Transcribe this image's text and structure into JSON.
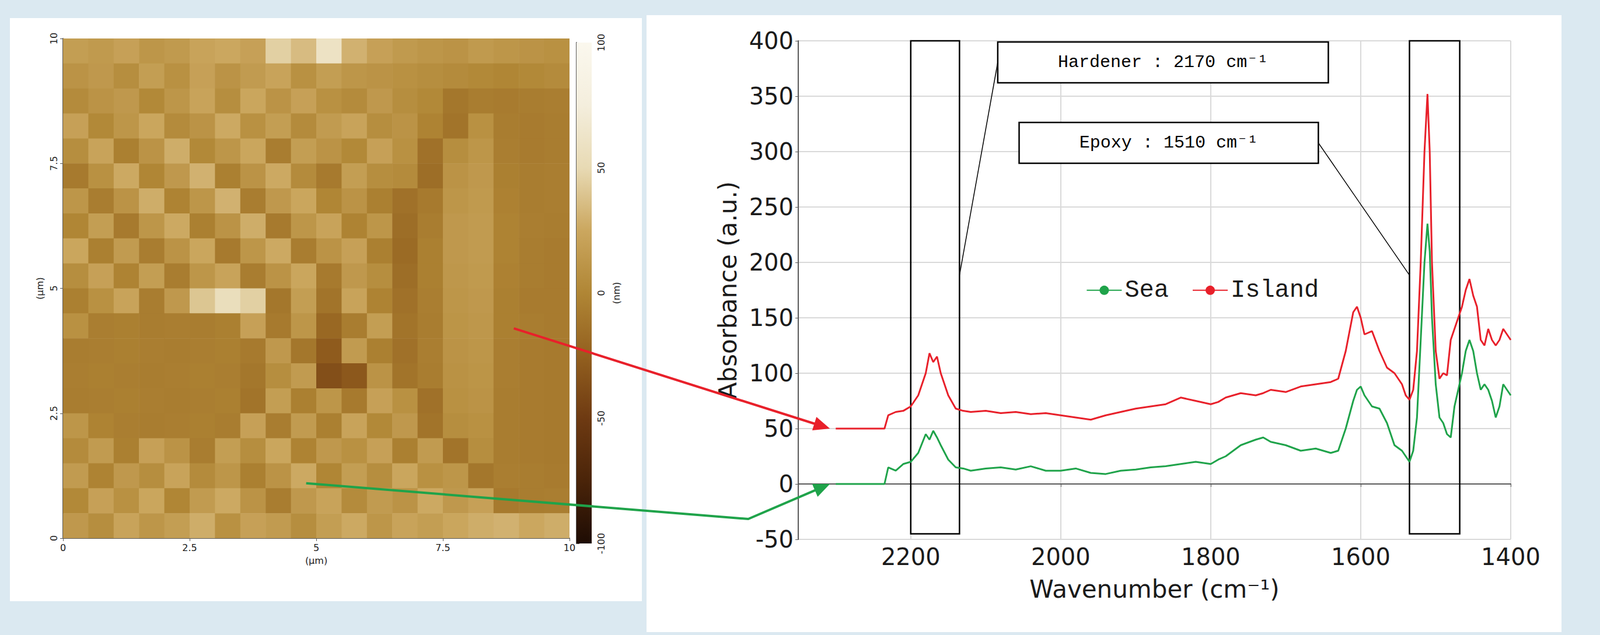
{
  "chart_data": [
    {
      "type": "heatmap",
      "xlabel": "(µm)",
      "ylabel": "(µm)",
      "xlim": [
        0,
        10
      ],
      "ylim": [
        0,
        10
      ],
      "xticks": [
        0,
        2.5,
        5,
        7.5,
        10
      ],
      "yticks": [
        0,
        2.5,
        5,
        7.5,
        10
      ],
      "grid": false,
      "x": [
        0.25,
        0.75,
        1.25,
        1.75,
        2.25,
        2.75,
        3.25,
        3.75,
        4.25,
        4.75,
        5.25,
        5.75,
        6.25,
        6.75,
        7.25,
        7.75,
        8.25,
        8.75,
        9.25,
        9.75
      ],
      "y": [
        9.75,
        9.25,
        8.75,
        8.25,
        7.75,
        7.25,
        6.75,
        6.25,
        5.75,
        5.25,
        4.75,
        4.25,
        3.75,
        3.25,
        2.75,
        2.25,
        1.75,
        1.25,
        0.75,
        0.25
      ],
      "values": [
        [
          18,
          15,
          20,
          12,
          15,
          22,
          25,
          20,
          45,
          35,
          60,
          30,
          20,
          15,
          12,
          10,
          15,
          12,
          10,
          8
        ],
        [
          10,
          14,
          6,
          18,
          8,
          20,
          10,
          16,
          22,
          8,
          18,
          12,
          10,
          8,
          6,
          4,
          2,
          0,
          2,
          4
        ],
        [
          4,
          10,
          14,
          2,
          12,
          22,
          6,
          24,
          10,
          20,
          8,
          4,
          14,
          6,
          2,
          -10,
          -6,
          -7,
          -6,
          -5
        ],
        [
          20,
          2,
          12,
          24,
          4,
          10,
          26,
          8,
          18,
          4,
          16,
          22,
          6,
          10,
          -2,
          -12,
          8,
          -6,
          -7,
          -6
        ],
        [
          6,
          22,
          -4,
          10,
          28,
          2,
          12,
          24,
          -6,
          18,
          10,
          2,
          20,
          8,
          -14,
          6,
          12,
          -5,
          -7,
          -6
        ],
        [
          -8,
          8,
          26,
          0,
          14,
          30,
          -4,
          10,
          26,
          4,
          -8,
          18,
          6,
          4,
          -16,
          10,
          14,
          -4,
          -6,
          -5
        ],
        [
          12,
          -6,
          10,
          28,
          -2,
          12,
          30,
          -6,
          14,
          24,
          0,
          10,
          -4,
          -14,
          -8,
          12,
          15,
          -3,
          -6,
          -5
        ],
        [
          0,
          18,
          -8,
          12,
          26,
          -4,
          10,
          28,
          -8,
          12,
          22,
          -2,
          12,
          -16,
          -6,
          14,
          16,
          -2,
          -5,
          -6
        ],
        [
          24,
          -4,
          16,
          -6,
          10,
          24,
          -8,
          12,
          26,
          -6,
          10,
          20,
          -4,
          -18,
          -4,
          14,
          16,
          -2,
          -6,
          -7
        ],
        [
          6,
          20,
          -2,
          18,
          -6,
          12,
          22,
          -6,
          10,
          24,
          -8,
          14,
          6,
          -16,
          -4,
          13,
          15,
          -3,
          -6,
          -7
        ],
        [
          -4,
          8,
          22,
          -6,
          14,
          40,
          55,
          45,
          -10,
          18,
          -12,
          22,
          -2,
          -14,
          -5,
          12,
          14,
          -4,
          -7,
          -7
        ],
        [
          8,
          -5,
          -4,
          -6,
          -5,
          -6,
          -4,
          20,
          -8,
          12,
          -20,
          -6,
          18,
          -12,
          -6,
          11,
          13,
          -4,
          -6,
          -7
        ],
        [
          -6,
          -5,
          -4,
          -5,
          -6,
          -5,
          -4,
          -8,
          14,
          -10,
          -28,
          16,
          -4,
          -14,
          -5,
          10,
          12,
          -5,
          -7,
          -8
        ],
        [
          -5,
          -4,
          -5,
          -6,
          -5,
          -4,
          -5,
          -10,
          6,
          16,
          -36,
          -30,
          10,
          -12,
          -6,
          9,
          11,
          -5,
          -7,
          -8
        ],
        [
          -6,
          -5,
          -4,
          -5,
          -6,
          -5,
          -4,
          -12,
          18,
          -4,
          12,
          -8,
          20,
          8,
          -14,
          8,
          10,
          -6,
          -7,
          -8
        ],
        [
          12,
          -2,
          -5,
          -6,
          -5,
          -4,
          -6,
          20,
          -6,
          16,
          -4,
          22,
          2,
          14,
          -12,
          6,
          8,
          -6,
          -7,
          -8
        ],
        [
          4,
          16,
          -4,
          20,
          10,
          -6,
          18,
          6,
          24,
          -2,
          14,
          8,
          20,
          -4,
          16,
          -12,
          6,
          -6,
          -7,
          -8
        ],
        [
          16,
          -2,
          14,
          6,
          22,
          4,
          12,
          -4,
          10,
          26,
          0,
          18,
          6,
          24,
          8,
          12,
          -10,
          -5,
          -6,
          -7
        ],
        [
          2,
          20,
          8,
          24,
          0,
          16,
          26,
          10,
          -6,
          14,
          22,
          4,
          16,
          10,
          26,
          14,
          20,
          -8,
          -6,
          -5
        ],
        [
          14,
          6,
          22,
          12,
          18,
          28,
          8,
          20,
          16,
          6,
          18,
          26,
          12,
          22,
          18,
          24,
          28,
          30,
          25,
          28
        ]
      ],
      "colorbar": {
        "label": "(nm)",
        "range": [
          -100,
          100
        ],
        "ticks": [
          -100,
          -50,
          0,
          50,
          100
        ]
      }
    },
    {
      "type": "line",
      "xlabel": "Wavenumber (cm⁻¹)",
      "ylabel": "Absorbance (a.u.)",
      "xlim": [
        2350,
        1400
      ],
      "ylim": [
        -50,
        400
      ],
      "xticks": [
        2200,
        2000,
        1800,
        1600,
        1400
      ],
      "yticks": [
        -50,
        0,
        50,
        100,
        150,
        200,
        250,
        300,
        350,
        400
      ],
      "grid": true,
      "legend": "center",
      "x": [
        2300,
        2235,
        2230,
        2220,
        2210,
        2200,
        2190,
        2180,
        2175,
        2170,
        2165,
        2160,
        2150,
        2140,
        2130,
        2120,
        2100,
        2080,
        2060,
        2040,
        2020,
        2000,
        1980,
        1960,
        1940,
        1920,
        1900,
        1880,
        1860,
        1840,
        1820,
        1800,
        1790,
        1780,
        1760,
        1740,
        1730,
        1720,
        1700,
        1680,
        1660,
        1640,
        1630,
        1620,
        1610,
        1605,
        1600,
        1595,
        1585,
        1575,
        1565,
        1555,
        1545,
        1540,
        1535,
        1530,
        1525,
        1520,
        1515,
        1511,
        1508,
        1505,
        1500,
        1495,
        1490,
        1485,
        1480,
        1475,
        1465,
        1460,
        1455,
        1450,
        1445,
        1440,
        1435,
        1430,
        1425,
        1420,
        1415,
        1410,
        1405,
        1400
      ],
      "series": [
        {
          "name": "Sea",
          "color": "#1fa34a",
          "values": [
            0,
            0,
            15,
            12,
            18,
            20,
            28,
            45,
            40,
            48,
            42,
            35,
            22,
            15,
            14,
            12,
            14,
            15,
            13,
            16,
            12,
            12,
            14,
            10,
            9,
            12,
            13,
            15,
            16,
            18,
            20,
            18,
            22,
            25,
            35,
            40,
            42,
            38,
            35,
            30,
            32,
            28,
            30,
            50,
            75,
            85,
            88,
            80,
            70,
            68,
            55,
            35,
            30,
            25,
            20,
            30,
            60,
            130,
            200,
            235,
            210,
            150,
            90,
            60,
            55,
            45,
            42,
            70,
            100,
            120,
            130,
            120,
            100,
            85,
            90,
            85,
            75,
            60,
            70,
            90,
            85,
            80
          ]
        },
        {
          "name": "Island",
          "color": "#e8202a",
          "values": [
            50,
            50,
            62,
            65,
            66,
            70,
            80,
            100,
            118,
            110,
            115,
            100,
            80,
            68,
            66,
            65,
            66,
            64,
            65,
            63,
            64,
            62,
            60,
            58,
            62,
            65,
            68,
            70,
            72,
            78,
            75,
            72,
            74,
            78,
            82,
            80,
            82,
            85,
            83,
            88,
            90,
            92,
            95,
            120,
            155,
            160,
            150,
            135,
            138,
            120,
            105,
            100,
            90,
            80,
            76,
            85,
            120,
            200,
            300,
            352,
            300,
            200,
            120,
            95,
            100,
            98,
            130,
            140,
            160,
            175,
            185,
            170,
            160,
            130,
            125,
            140,
            130,
            125,
            130,
            140,
            135,
            130
          ]
        }
      ],
      "annotations": [
        {
          "text": "Hardener : 2170 cm⁻¹",
          "box": {
            "x": [
              2200,
              2135
            ],
            "y": [
              -45,
              400
            ]
          }
        },
        {
          "text": "Epoxy : 1510 cm⁻¹",
          "box": {
            "x": [
              1535,
              1468
            ],
            "y": [
              -45,
              400
            ]
          }
        }
      ]
    }
  ]
}
